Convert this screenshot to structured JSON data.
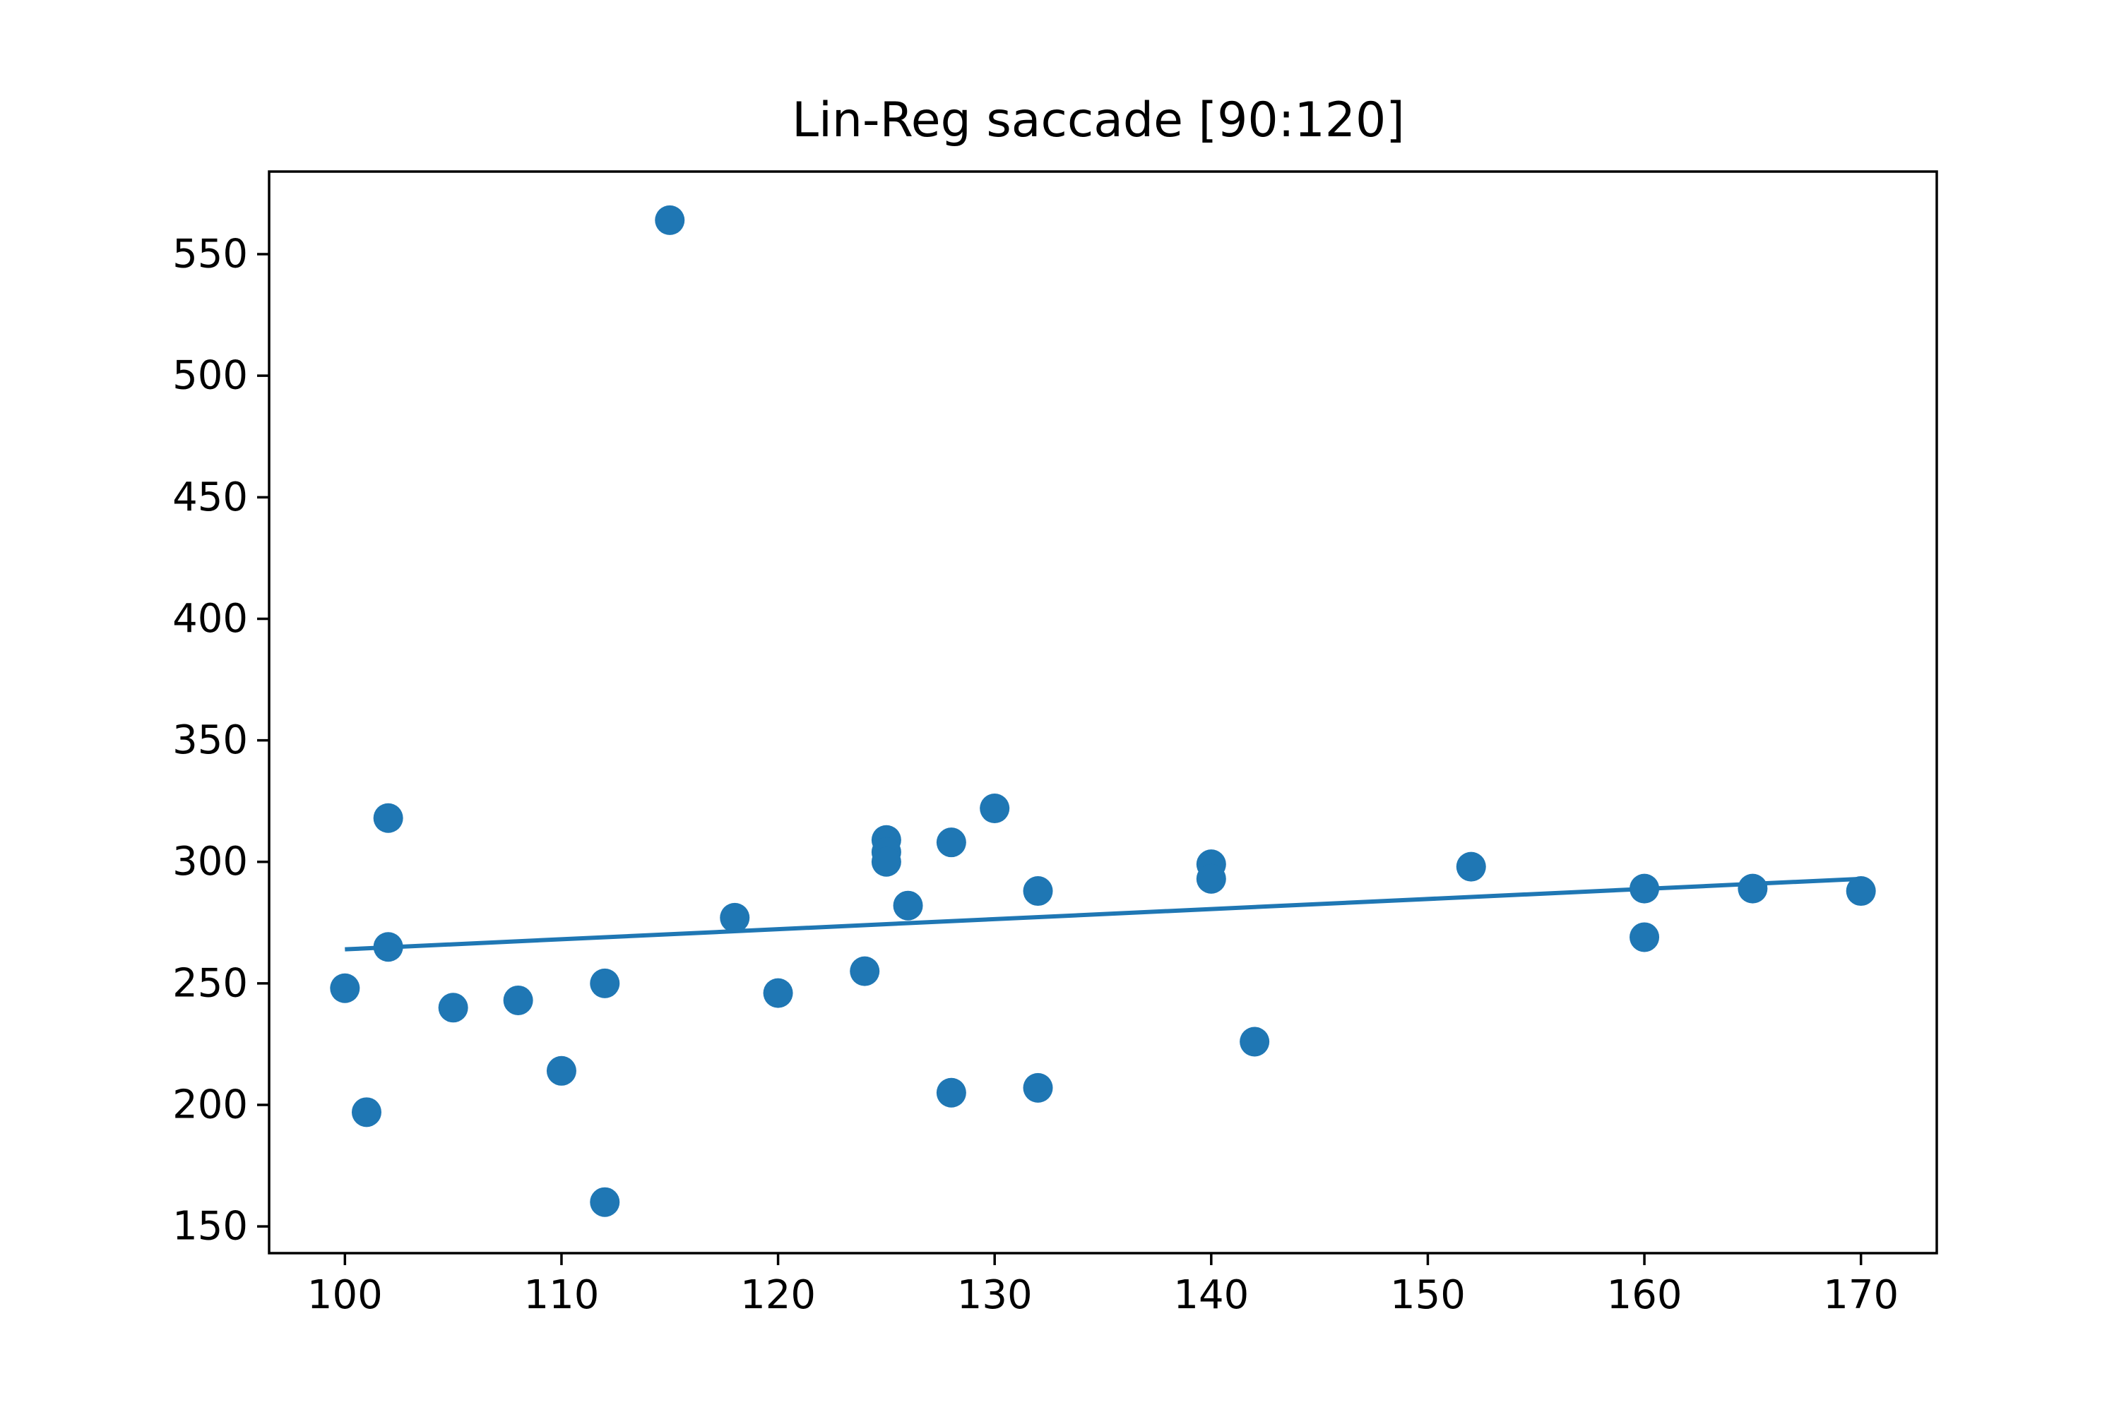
{
  "chart_data": {
    "type": "scatter",
    "title": "Lin-Reg saccade [90:120]",
    "xlabel": "",
    "ylabel": "",
    "xlim": [
      96.5,
      173.5
    ],
    "ylim": [
      139,
      584
    ],
    "xticks": [
      100,
      110,
      120,
      130,
      140,
      150,
      160,
      170
    ],
    "yticks": [
      150,
      200,
      250,
      300,
      350,
      400,
      450,
      500,
      550
    ],
    "grid": false,
    "color": "#1f77b4",
    "points": [
      {
        "x": 100,
        "y": 248
      },
      {
        "x": 101,
        "y": 197
      },
      {
        "x": 102,
        "y": 318
      },
      {
        "x": 102,
        "y": 265
      },
      {
        "x": 105,
        "y": 240
      },
      {
        "x": 108,
        "y": 243
      },
      {
        "x": 110,
        "y": 214
      },
      {
        "x": 112,
        "y": 250
      },
      {
        "x": 112,
        "y": 160
      },
      {
        "x": 115,
        "y": 564
      },
      {
        "x": 118,
        "y": 277
      },
      {
        "x": 120,
        "y": 246
      },
      {
        "x": 124,
        "y": 255
      },
      {
        "x": 125,
        "y": 309
      },
      {
        "x": 125,
        "y": 304
      },
      {
        "x": 125,
        "y": 300
      },
      {
        "x": 126,
        "y": 282
      },
      {
        "x": 128,
        "y": 308
      },
      {
        "x": 128,
        "y": 205
      },
      {
        "x": 130,
        "y": 322
      },
      {
        "x": 132,
        "y": 288
      },
      {
        "x": 132,
        "y": 207
      },
      {
        "x": 140,
        "y": 299
      },
      {
        "x": 140,
        "y": 293
      },
      {
        "x": 142,
        "y": 226
      },
      {
        "x": 152,
        "y": 298
      },
      {
        "x": 160,
        "y": 289
      },
      {
        "x": 160,
        "y": 269
      },
      {
        "x": 165,
        "y": 289
      },
      {
        "x": 170,
        "y": 288
      }
    ],
    "regression_line": {
      "x": [
        100,
        170
      ],
      "y": [
        264,
        293
      ]
    }
  }
}
